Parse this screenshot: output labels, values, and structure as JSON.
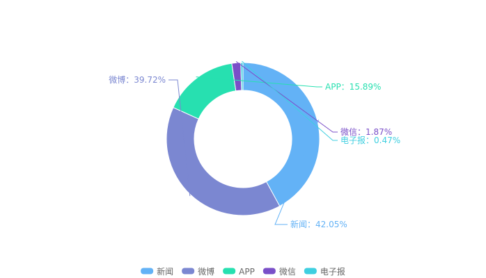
{
  "chart_data": {
    "type": "pie",
    "variant": "donut",
    "categories": [
      "新闻",
      "微博",
      "APP",
      "微信",
      "电子报"
    ],
    "values": [
      42.05,
      39.72,
      15.89,
      1.87,
      0.47
    ],
    "labels": [
      "新闻：42.05%",
      "微博：39.72%",
      "APP：15.89%",
      "微信：1.87%",
      "电子报：0.47%"
    ],
    "colors": [
      "#63b2f6",
      "#7b87d1",
      "#27e0b0",
      "#7a4fc8",
      "#3fcfe0"
    ],
    "legend": {
      "position": "bottom-center",
      "items": [
        "新闻",
        "微博",
        "APP",
        "微信",
        "电子报"
      ]
    },
    "title": ""
  }
}
